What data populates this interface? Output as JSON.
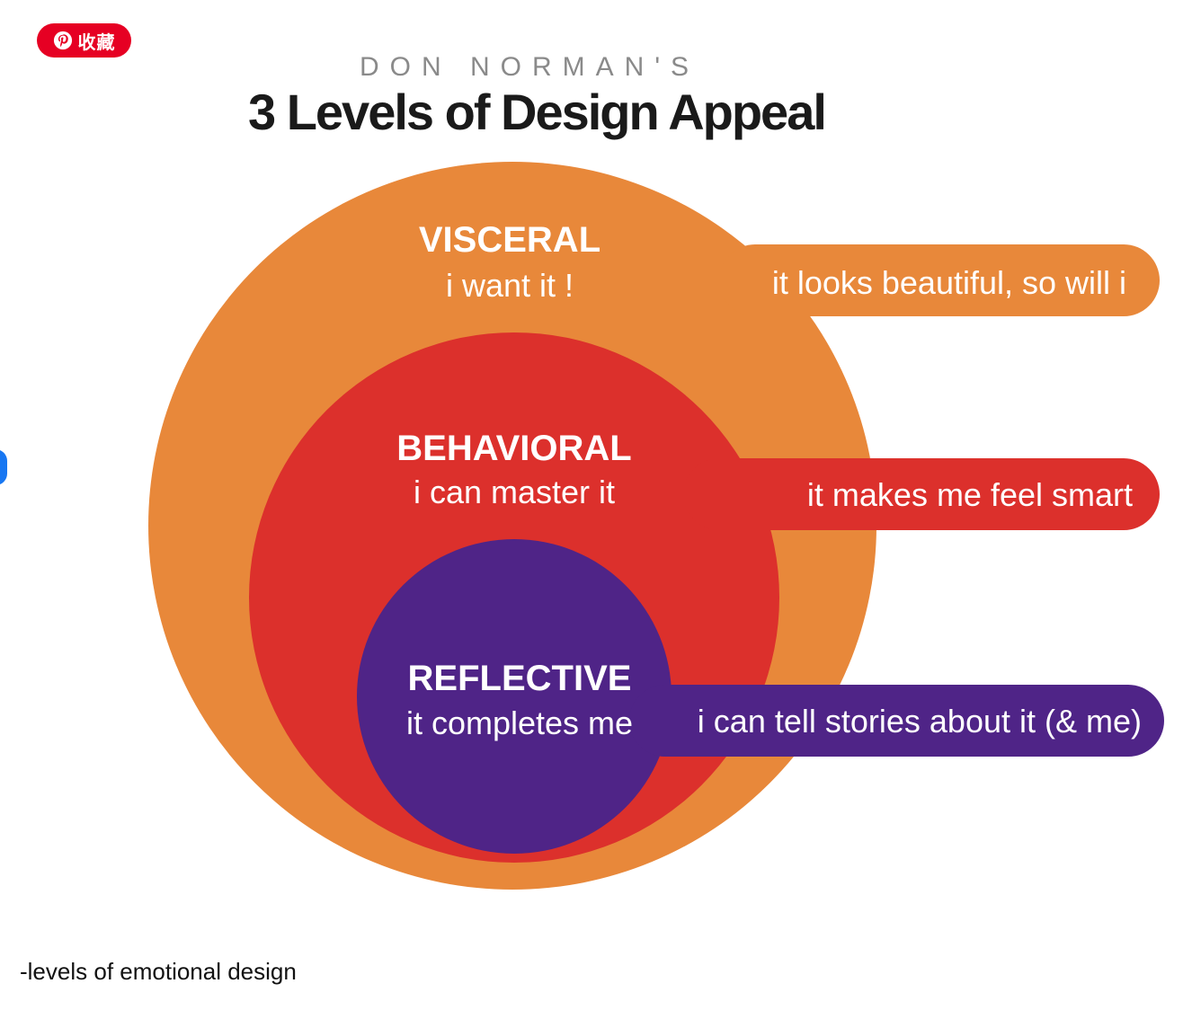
{
  "pin_button": {
    "label": "收藏",
    "icon": "pinterest-icon",
    "color": "#e60023"
  },
  "header": {
    "overline": "DON NORMAN'S",
    "title": "3 Levels of Design Appeal"
  },
  "levels": [
    {
      "name": "VISCERAL",
      "subtitle": "i want it !",
      "tagline": "it looks beautiful, so will i",
      "color": "#e8883a"
    },
    {
      "name": "BEHAVIORAL",
      "subtitle": "i can master it",
      "tagline": "it makes me feel smart",
      "color": "#dc302c"
    },
    {
      "name": "REFLECTIVE",
      "subtitle": "it completes me",
      "tagline": "i can tell stories about it (& me)",
      "color": "#4f2487"
    }
  ],
  "caption": "-levels of emotional design"
}
